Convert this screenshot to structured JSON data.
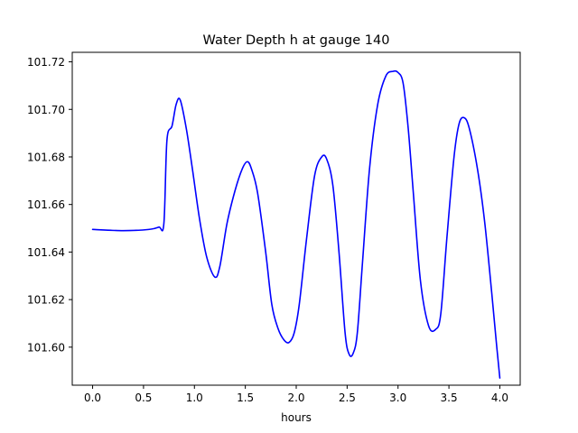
{
  "chart_data": {
    "type": "line",
    "title": "Water Depth h at gauge 140",
    "xlabel": "hours",
    "ylabel": "",
    "xlim": [
      -0.2,
      4.2
    ],
    "ylim": [
      101.584,
      101.724
    ],
    "xticks": [
      0.0,
      0.5,
      1.0,
      1.5,
      2.0,
      2.5,
      3.0,
      3.5,
      4.0
    ],
    "xtick_labels": [
      "0.0",
      "0.5",
      "1.0",
      "1.5",
      "2.0",
      "2.5",
      "3.0",
      "3.5",
      "4.0"
    ],
    "yticks": [
      101.6,
      101.62,
      101.64,
      101.66,
      101.68,
      101.7,
      101.72
    ],
    "ytick_labels": [
      "101.60",
      "101.62",
      "101.64",
      "101.66",
      "101.68",
      "101.70",
      "101.72"
    ],
    "grid": false,
    "series": [
      {
        "color": "#0000ff",
        "x": [
          0.0,
          0.3,
          0.55,
          0.65,
          0.7,
          0.73,
          0.78,
          0.82,
          0.86,
          0.92,
          0.98,
          1.05,
          1.12,
          1.2,
          1.25,
          1.32,
          1.4,
          1.47,
          1.52,
          1.56,
          1.62,
          1.7,
          1.76,
          1.82,
          1.88,
          1.93,
          1.98,
          2.03,
          2.1,
          2.18,
          2.25,
          2.3,
          2.36,
          2.42,
          2.48,
          2.52,
          2.56,
          2.6,
          2.65,
          2.72,
          2.8,
          2.88,
          2.95,
          3.0,
          3.05,
          3.1,
          3.15,
          3.22,
          3.3,
          3.37,
          3.42,
          3.48,
          3.55,
          3.6,
          3.65,
          3.7,
          3.78,
          3.85,
          3.92,
          3.97,
          4.0
        ],
        "y": [
          101.6495,
          101.649,
          101.6495,
          101.6505,
          101.652,
          101.687,
          101.693,
          101.702,
          101.704,
          101.692,
          101.675,
          101.654,
          101.638,
          101.6295,
          101.634,
          101.652,
          101.666,
          101.675,
          101.678,
          101.675,
          101.665,
          101.64,
          101.618,
          101.608,
          101.603,
          101.602,
          101.606,
          101.618,
          101.645,
          101.672,
          101.68,
          101.679,
          101.668,
          101.64,
          101.606,
          101.597,
          101.5975,
          101.606,
          101.635,
          101.675,
          101.702,
          101.714,
          101.716,
          101.7155,
          101.711,
          101.692,
          101.665,
          101.628,
          101.609,
          101.6075,
          101.614,
          101.646,
          101.68,
          101.694,
          101.6965,
          101.692,
          101.675,
          101.653,
          101.623,
          101.6,
          101.587
        ]
      }
    ]
  }
}
